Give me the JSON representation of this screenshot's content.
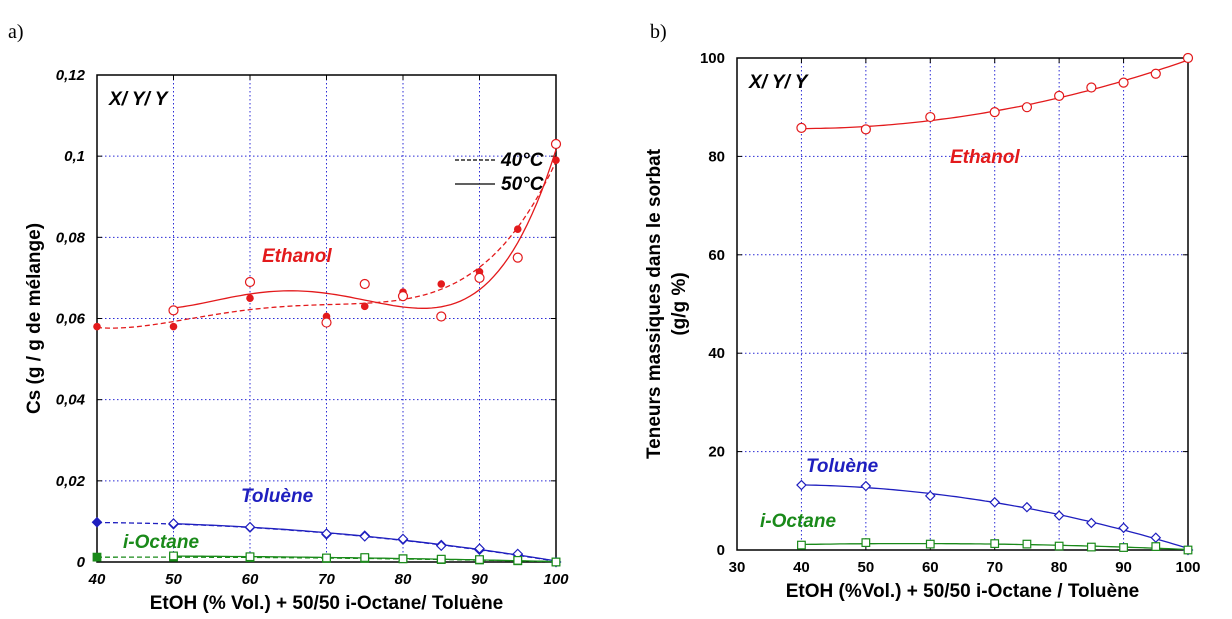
{
  "chart_data": [
    {
      "type": "scatter",
      "panel_label": "a)",
      "annotation": "X/ Y/ Y",
      "legend": [
        {
          "style": "dashed",
          "label": "40°C"
        },
        {
          "style": "solid",
          "label": "50°C"
        }
      ],
      "xlabel": "EtOH (% Vol.) + 50/50 i-Octane/ Toluène",
      "ylabel": "Cs (g / g de mélange)",
      "xlim": [
        40,
        100
      ],
      "ylim": [
        0,
        0.12
      ],
      "x_ticks": [
        "40",
        "50",
        "60",
        "70",
        "80",
        "90",
        "100"
      ],
      "y_ticks": [
        "0",
        "0,02",
        "0,04",
        "0,06",
        "0,08",
        "0,1",
        "0,12"
      ],
      "grid": true,
      "series": [
        {
          "name": "Ethanol",
          "temperature": "40°C",
          "marker": "filled-circle",
          "line": "dashed",
          "color": "#e31a1c",
          "x": [
            40,
            50,
            60,
            70,
            75,
            80,
            85,
            90,
            95,
            100
          ],
          "y": [
            0.058,
            0.058,
            0.065,
            0.0605,
            0.063,
            0.0665,
            0.0685,
            0.0715,
            0.082,
            0.099
          ]
        },
        {
          "name": "Ethanol",
          "temperature": "50°C",
          "marker": "open-circle",
          "line": "solid",
          "color": "#e31a1c",
          "x": [
            50,
            60,
            70,
            75,
            80,
            85,
            90,
            95,
            100
          ],
          "y": [
            0.062,
            0.069,
            0.059,
            0.0685,
            0.0655,
            0.0605,
            0.07,
            0.075,
            0.103
          ]
        },
        {
          "name": "Toluène",
          "temperature": "40°C",
          "marker": "filled-diamond",
          "line": "dashed",
          "color": "#1f1fbf",
          "x": [
            40,
            50,
            60,
            70,
            75,
            80,
            85,
            90,
            95,
            100
          ],
          "y": [
            0.0098,
            0.0093,
            0.0085,
            0.0068,
            0.0065,
            0.0055,
            0.0042,
            0.003,
            0.0018,
            0.0
          ]
        },
        {
          "name": "Toluène",
          "temperature": "50°C",
          "marker": "open-diamond",
          "line": "solid",
          "color": "#1f1fbf",
          "x": [
            50,
            60,
            70,
            75,
            80,
            85,
            90,
            95,
            100
          ],
          "y": [
            0.0095,
            0.0086,
            0.007,
            0.0063,
            0.0057,
            0.004,
            0.0033,
            0.002,
            0.0
          ]
        },
        {
          "name": "i-Octane",
          "temperature": "40°C",
          "marker": "filled-square",
          "line": "dashed",
          "color": "#1a8a1a",
          "x": [
            40,
            50,
            60,
            70,
            75,
            80,
            85,
            90,
            95,
            100
          ],
          "y": [
            0.0012,
            0.0012,
            0.0011,
            0.0009,
            0.0009,
            0.0008,
            0.0006,
            0.0005,
            0.0003,
            0.0
          ]
        },
        {
          "name": "i-Octane",
          "temperature": "50°C",
          "marker": "open-square",
          "line": "solid",
          "color": "#1a8a1a",
          "x": [
            50,
            60,
            70,
            75,
            80,
            85,
            90,
            95,
            100
          ],
          "y": [
            0.0015,
            0.0013,
            0.001,
            0.0011,
            0.0008,
            0.0007,
            0.0006,
            0.0004,
            0.0
          ]
        }
      ]
    },
    {
      "type": "scatter",
      "panel_label": "b)",
      "annotation": "X/ Y/ Y",
      "xlabel": "EtOH (%Vol.) + 50/50 i-Octane / Toluène",
      "ylabel_lines": [
        "Teneurs massiques dans le sorbat",
        "(g/g %)"
      ],
      "xlim": [
        30,
        100
      ],
      "ylim": [
        0,
        100
      ],
      "x_ticks": [
        "30",
        "40",
        "50",
        "60",
        "70",
        "80",
        "90",
        "100"
      ],
      "y_ticks": [
        "0",
        "20",
        "40",
        "60",
        "80",
        "100"
      ],
      "grid": true,
      "series": [
        {
          "name": "Ethanol",
          "marker": "open-circle",
          "line": "solid",
          "color": "#e31a1c",
          "x": [
            40,
            50,
            60,
            70,
            75,
            80,
            85,
            90,
            95,
            100
          ],
          "y": [
            85.8,
            85.5,
            88.0,
            89.0,
            90.0,
            92.3,
            94.0,
            95.0,
            96.8,
            100
          ]
        },
        {
          "name": "Toluène",
          "marker": "open-diamond",
          "line": "solid",
          "color": "#1f1fbf",
          "x": [
            40,
            50,
            60,
            70,
            75,
            80,
            85,
            90,
            95,
            100
          ],
          "y": [
            13.2,
            13.0,
            11.0,
            9.7,
            8.7,
            7.0,
            5.5,
            4.5,
            2.5,
            0
          ]
        },
        {
          "name": "i-Octane",
          "marker": "open-square",
          "line": "solid",
          "color": "#1a8a1a",
          "x": [
            40,
            50,
            60,
            70,
            75,
            80,
            85,
            90,
            95,
            100
          ],
          "y": [
            1.0,
            1.5,
            1.2,
            1.3,
            1.2,
            0.8,
            0.6,
            0.5,
            0.7,
            0
          ]
        }
      ]
    }
  ]
}
